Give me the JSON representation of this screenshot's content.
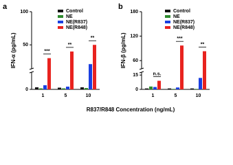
{
  "chart_data": [
    {
      "type": "bar",
      "label": "a",
      "ylabel": "IFN-α (pg/mL)",
      "categories": [
        "1",
        "5",
        "10"
      ],
      "series": [
        {
          "name": "Control",
          "color": "#111111",
          "values": [
            0.6,
            0.5,
            0.6
          ]
        },
        {
          "name": "NE",
          "color": "#2e8b2e",
          "values": [
            0.3,
            0.3,
            0.4
          ]
        },
        {
          "name": "NE(R837)",
          "color": "#1a3fe0",
          "values": [
            1.2,
            0.8,
            21
          ]
        },
        {
          "name": "NE(R848)",
          "color": "#e8231f",
          "values": [
            30,
            40,
            50
          ]
        }
      ],
      "ylim": [
        0,
        100
      ],
      "ybreak": [
        5,
        14
      ],
      "yticks": [
        0,
        50,
        100
      ],
      "annotations": [
        "***",
        "**",
        "**"
      ]
    },
    {
      "type": "bar",
      "label": "b",
      "ylabel": "IFN-β (pg/mL)",
      "categories": [
        "1",
        "5",
        "10"
      ],
      "series": [
        {
          "name": "Control",
          "color": "#111111",
          "values": [
            1,
            1,
            1
          ]
        },
        {
          "name": "NE",
          "color": "#2e8b2e",
          "values": [
            3,
            0.5,
            0.5
          ]
        },
        {
          "name": "NE(R837)",
          "color": "#1a3fe0",
          "values": [
            2.5,
            2,
            12
          ]
        },
        {
          "name": "NE(R848)",
          "color": "#e8231f",
          "values": [
            9,
            97,
            83
          ]
        }
      ],
      "ylim": [
        0,
        180
      ],
      "ybreak": [
        18,
        40
      ],
      "yticks": [
        0,
        15,
        60,
        120,
        180
      ],
      "annotations": [
        "n.s.",
        "***",
        "**"
      ]
    }
  ],
  "xlabel": "R837/R848 Concentration (ng/mL)"
}
